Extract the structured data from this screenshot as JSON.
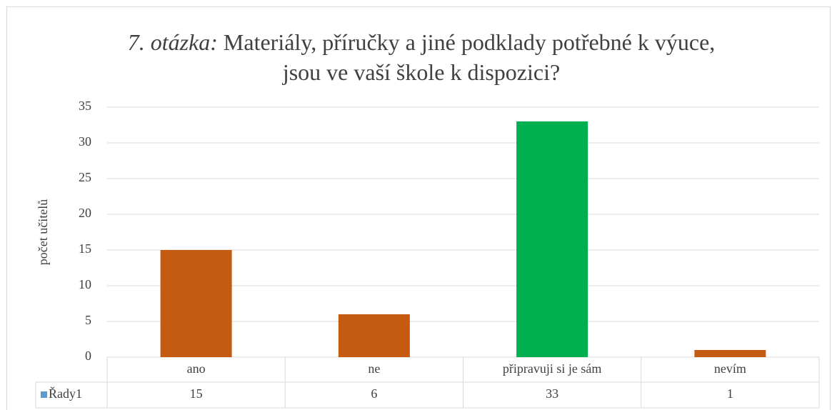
{
  "chart_data": {
    "type": "bar",
    "title": [
      "7. otázka:",
      "Materiály, příručky a jiné podklady potřebné k výuce, jsou ve vaší škole k dispozici?"
    ],
    "y_label": "počet učitelů",
    "categories": [
      "ano",
      "ne",
      "připravuji si je sám",
      "nevím"
    ],
    "series": [
      {
        "name": "Řady1",
        "color": "#5b9bd5",
        "values": [
          15,
          6,
          33,
          1
        ]
      }
    ],
    "bar_colors": [
      "#c55a11",
      "#c55a11",
      "#00b050",
      "#c55a11"
    ],
    "ylim": [
      0,
      35
    ],
    "yticks": [
      0,
      5,
      10,
      15,
      20,
      25,
      30,
      35
    ],
    "grid": true
  }
}
